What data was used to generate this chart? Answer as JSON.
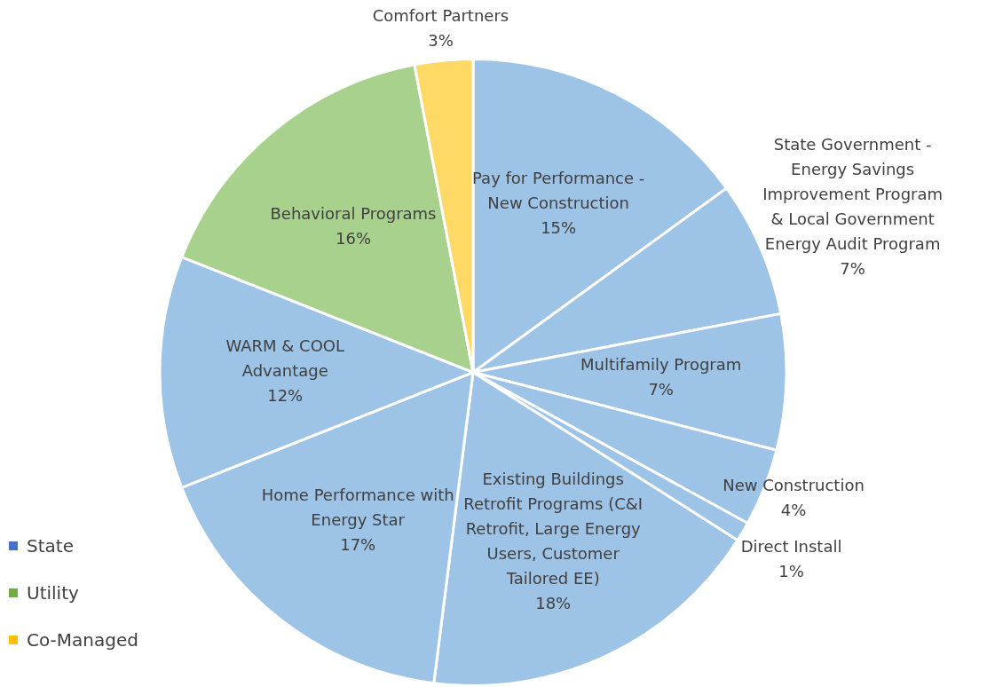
{
  "chart_data": {
    "type": "pie",
    "categories": [
      "Pay for Performance - New Construction",
      "State Government - Energy Savings Improvement Program & Local Government Energy Audit Program",
      "Multifamily Program",
      "New Construction",
      "Direct Install",
      "Existing Buildings Retrofit Programs (C&I Retrofit, Large Energy Users, Customer Tailored EE)",
      "Home Performance with Energy Star",
      "WARM & COOL Advantage",
      "Behavioral Programs",
      "Comfort Partners"
    ],
    "values": [
      15,
      7,
      7,
      4,
      1,
      18,
      17,
      12,
      16,
      3
    ],
    "value_labels": [
      "15%",
      "7%",
      "7%",
      "4%",
      "1%",
      "18%",
      "17%",
      "12%",
      "16%",
      "3%"
    ],
    "colors": [
      "#9dc3e6",
      "#9dc3e6",
      "#9dc3e6",
      "#9dc3e6",
      "#9dc3e6",
      "#9dc3e6",
      "#9dc3e6",
      "#9dc3e6",
      "#a9d18e",
      "#ffd966"
    ],
    "annotations": [
      "State",
      "Utility",
      "Co-Managed"
    ]
  }
}
